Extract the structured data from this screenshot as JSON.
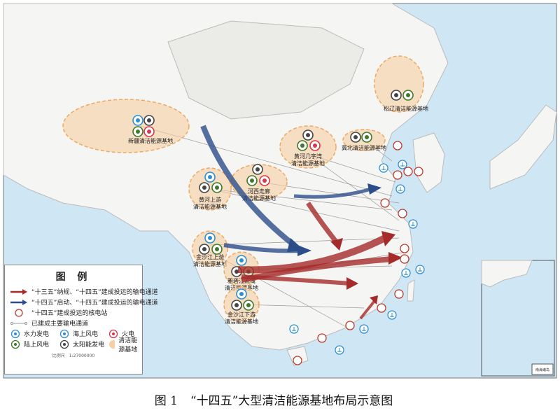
{
  "caption": {
    "number": "图 1",
    "title": "“十四五”大型清洁能源基地布局示意图"
  },
  "legend": {
    "title": "图 例",
    "items": [
      {
        "label": "“十三五”纳规、“十四五”建成投运的输电通道",
        "color": "#a52a2a"
      },
      {
        "label": "“十四五”启动、“十四五”建成投运的输电通道",
        "color": "#2c4d8a"
      },
      {
        "label": "“十四五”建成投运的核电站",
        "color": "#c0392b"
      },
      {
        "label": "已建成主要输电通道",
        "color": "#999999"
      }
    ],
    "icons": [
      {
        "label": "水力发电",
        "icon": "hydro-icon",
        "color": "#2e8fd0"
      },
      {
        "label": "海上风电",
        "icon": "offshore-wind-icon",
        "color": "#2e8fd0"
      },
      {
        "label": "火电",
        "icon": "thermal-icon",
        "color": "#d9364a"
      },
      {
        "label": "陆上风电",
        "icon": "onshore-wind-icon",
        "color": "#3f7a2a"
      },
      {
        "label": "太阳能发电",
        "icon": "solar-icon",
        "color": "#444444"
      },
      {
        "label": "清洁能源基地",
        "icon": "base-area-icon",
        "color": "#f6cfa4"
      }
    ],
    "scale": "比例尺　1:27000000"
  },
  "bases": [
    {
      "name": "新疆清洁能源基地",
      "types": [
        "hydro",
        "solar",
        "wind",
        "thermal"
      ]
    },
    {
      "name": "黄河上游\n清洁能源基地",
      "types": [
        "hydro",
        "solar",
        "wind"
      ]
    },
    {
      "name": "河西走廊\n清洁能源基地",
      "types": [
        "solar",
        "wind",
        "thermal"
      ]
    },
    {
      "name": "黄河几字湾\n清洁能源基地",
      "types": [
        "solar",
        "wind",
        "thermal"
      ]
    },
    {
      "name": "冀北清洁能源基地",
      "types": [
        "solar",
        "wind"
      ]
    },
    {
      "name": "松辽清洁能源基地",
      "types": [
        "solar",
        "wind"
      ]
    },
    {
      "name": "金沙江上游\n清洁能源基地",
      "types": [
        "hydro",
        "solar",
        "wind"
      ]
    },
    {
      "name": "雅砻江流域\n清洁能源基地",
      "types": [
        "hydro",
        "solar",
        "wind"
      ]
    },
    {
      "name": "金沙江下游\n清洁能源基地",
      "types": [
        "hydro",
        "solar",
        "wind"
      ]
    }
  ],
  "inset": {
    "title": "南海诸岛"
  },
  "colors": {
    "land": "#f4f4f2",
    "sea": "#cfe6f5",
    "base": "#f6cfa4",
    "red_arrow": "#a52a2a",
    "blue_arrow": "#2c4d8a"
  }
}
